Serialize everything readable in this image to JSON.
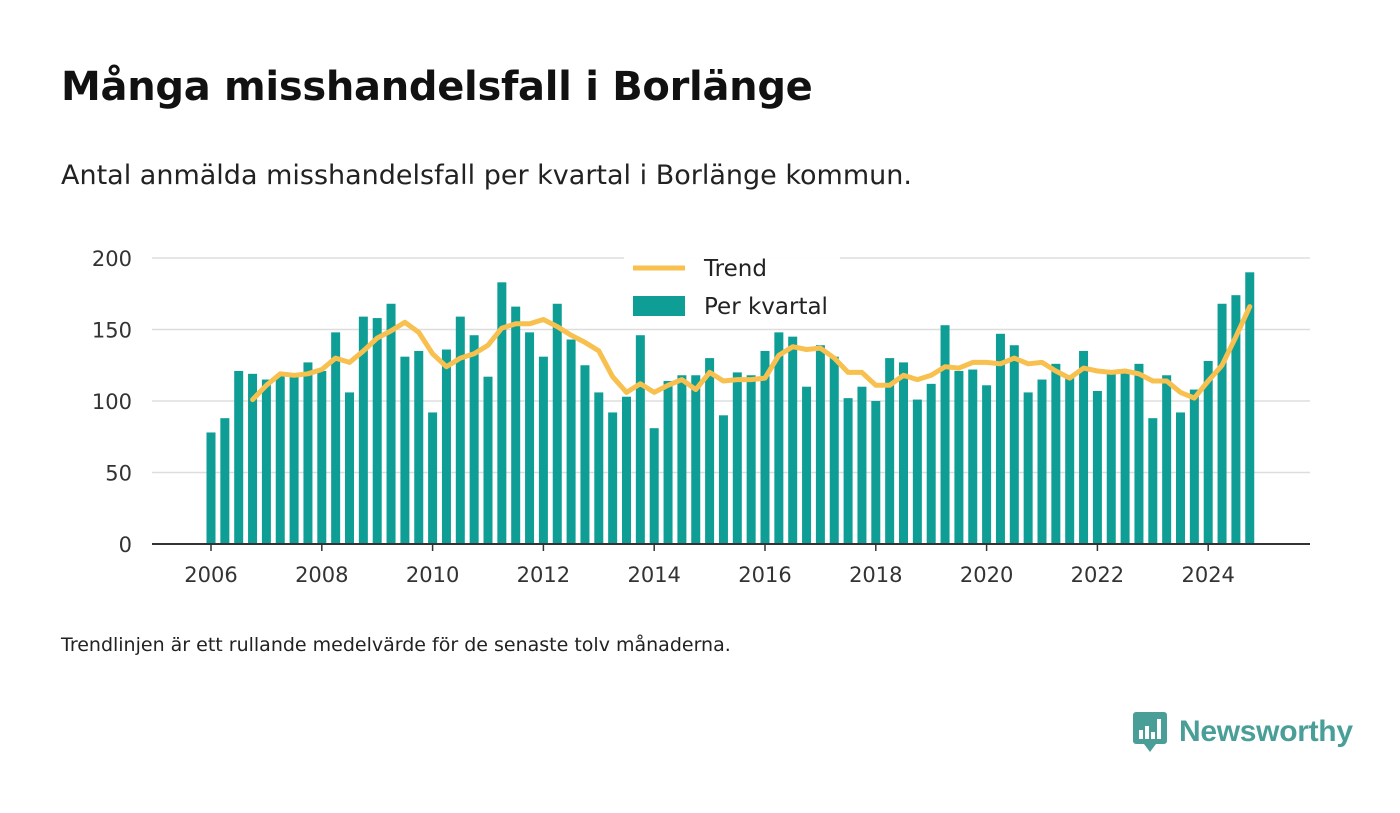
{
  "header": {
    "title": "Många misshandelsfall i Borlänge",
    "subtitle": "Antal anmälda misshandelsfall per kvartal i Borlänge kommun."
  },
  "footer": {
    "note": "Trendlinjen är ett rullande medelvärde för de senaste tolv månaderna.",
    "brand": "Newsworthy"
  },
  "colors": {
    "bar": "#0f9e96",
    "trend": "#f7c04f",
    "grid": "#dddddd",
    "axis": "#333333",
    "brand": "#4a9e98"
  },
  "icons": {
    "brand_logo": "chat-bar-chart-icon"
  },
  "chart_data": {
    "type": "bar",
    "title": "Många misshandelsfall i Borlänge",
    "xlabel": "",
    "ylabel": "",
    "ylim": [
      0,
      200
    ],
    "yticks": [
      0,
      50,
      100,
      150,
      200
    ],
    "xticks": [
      "2006",
      "2008",
      "2010",
      "2012",
      "2014",
      "2016",
      "2018",
      "2020",
      "2022",
      "2024"
    ],
    "grid": true,
    "legend_position": "top-center",
    "categories": [
      "2006 Q1",
      "2006 Q2",
      "2006 Q3",
      "2006 Q4",
      "2007 Q1",
      "2007 Q2",
      "2007 Q3",
      "2007 Q4",
      "2008 Q1",
      "2008 Q2",
      "2008 Q3",
      "2008 Q4",
      "2009 Q1",
      "2009 Q2",
      "2009 Q3",
      "2009 Q4",
      "2010 Q1",
      "2010 Q2",
      "2010 Q3",
      "2010 Q4",
      "2011 Q1",
      "2011 Q2",
      "2011 Q3",
      "2011 Q4",
      "2012 Q1",
      "2012 Q2",
      "2012 Q3",
      "2012 Q4",
      "2013 Q1",
      "2013 Q2",
      "2013 Q3",
      "2013 Q4",
      "2014 Q1",
      "2014 Q2",
      "2014 Q3",
      "2014 Q4",
      "2015 Q1",
      "2015 Q2",
      "2015 Q3",
      "2015 Q4",
      "2016 Q1",
      "2016 Q2",
      "2016 Q3",
      "2016 Q4",
      "2017 Q1",
      "2017 Q2",
      "2017 Q3",
      "2017 Q4",
      "2018 Q1",
      "2018 Q2",
      "2018 Q3",
      "2018 Q4",
      "2019 Q1",
      "2019 Q2",
      "2019 Q3",
      "2019 Q4",
      "2020 Q1",
      "2020 Q2",
      "2020 Q3",
      "2020 Q4",
      "2021 Q1",
      "2021 Q2",
      "2021 Q3",
      "2021 Q4",
      "2022 Q1",
      "2022 Q2",
      "2022 Q3",
      "2022 Q4",
      "2023 Q1",
      "2023 Q2",
      "2023 Q3",
      "2023 Q4",
      "2024 Q1",
      "2024 Q2",
      "2024 Q3",
      "2024 Q4"
    ],
    "series": [
      {
        "name": "Per kvartal",
        "type": "bar",
        "values": [
          78,
          88,
          121,
          119,
          115,
          118,
          117,
          127,
          121,
          148,
          106,
          159,
          158,
          168,
          131,
          135,
          92,
          136,
          159,
          146,
          117,
          183,
          166,
          148,
          131,
          168,
          143,
          125,
          106,
          92,
          103,
          146,
          81,
          114,
          118,
          118,
          130,
          90,
          120,
          118,
          135,
          148,
          145,
          110,
          139,
          131,
          102,
          110,
          100,
          130,
          127,
          101,
          112,
          153,
          121,
          122,
          111,
          147,
          139,
          106,
          115,
          126,
          117,
          135,
          107,
          120,
          120,
          126,
          88,
          118,
          92,
          108,
          128,
          168,
          174,
          190
        ]
      },
      {
        "name": "Trend",
        "type": "line",
        "values": [
          null,
          null,
          null,
          101,
          111,
          119,
          118,
          119,
          122,
          130,
          127,
          135,
          144,
          149,
          155,
          148,
          133,
          124,
          130,
          133,
          139,
          151,
          154,
          154,
          157,
          152,
          146,
          141,
          135,
          117,
          106,
          112,
          106,
          111,
          115,
          108,
          120,
          114,
          115,
          115,
          116,
          132,
          138,
          136,
          137,
          130,
          120,
          120,
          111,
          111,
          118,
          115,
          118,
          124,
          123,
          127,
          127,
          126,
          130,
          126,
          127,
          121,
          116,
          123,
          121,
          120,
          121,
          119,
          114,
          114,
          106,
          102,
          114,
          125,
          145,
          166
        ]
      }
    ]
  }
}
